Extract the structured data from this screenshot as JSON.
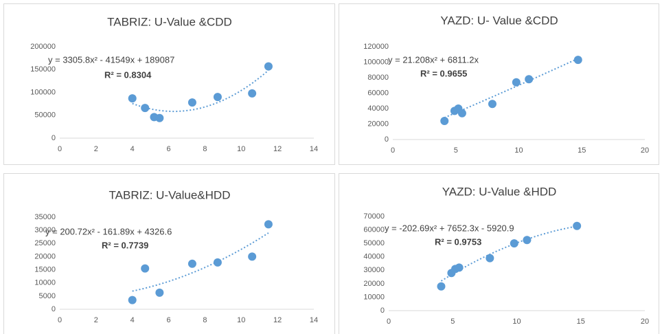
{
  "chart_data": [
    {
      "type": "scatter",
      "title": "TABRIZ: U-Value &CDD",
      "color": "#5b9bd5",
      "grid": false,
      "x": [
        4,
        4.7,
        5.2,
        5.5,
        7.3,
        8.7,
        10.6,
        11.5
      ],
      "values": [
        87000,
        66000,
        46000,
        44000,
        78000,
        90000,
        98000,
        157000
      ],
      "xlim": [
        0,
        14
      ],
      "xticks": [
        0,
        2,
        4,
        6,
        8,
        10,
        12,
        14
      ],
      "ylim": [
        0,
        200000
      ],
      "yticks": [
        0,
        50000,
        100000,
        150000,
        200000
      ],
      "trendline": {
        "equation": "y = 3305.8x² - 41549x + 189087",
        "r_squared": "R² = 0.8304",
        "a": 3305.8,
        "b": -41549,
        "c": 189087
      }
    },
    {
      "type": "scatter",
      "title": "YAZD: U- Value &CDD",
      "color": "#5b9bd5",
      "grid": false,
      "x": [
        4.1,
        4.9,
        5.2,
        5.5,
        7.9,
        9.8,
        10.8,
        14.7
      ],
      "values": [
        24000,
        37000,
        40000,
        34000,
        46000,
        74000,
        78000,
        103000
      ],
      "xlim": [
        0,
        20
      ],
      "xticks": [
        0,
        5,
        10,
        15,
        20
      ],
      "ylim": [
        0,
        120000
      ],
      "yticks": [
        0,
        20000,
        40000,
        60000,
        80000,
        100000,
        120000
      ],
      "trendline": {
        "equation": "y = 21.208x² + 6811.2x",
        "r_squared": "R² = 0.9655",
        "a": 21.208,
        "b": 6811.2
      }
    },
    {
      "type": "scatter",
      "title": "TABRIZ: U-Value&HDD",
      "color": "#5b9bd5",
      "grid": false,
      "x": [
        4,
        4.7,
        5.5,
        7.3,
        8.7,
        10.6,
        11.5
      ],
      "values": [
        3500,
        15500,
        6300,
        17300,
        17800,
        20000,
        32300
      ],
      "xlim": [
        0,
        14
      ],
      "xticks": [
        0,
        2,
        4,
        6,
        8,
        10,
        12,
        14
      ],
      "ylim": [
        0,
        35000
      ],
      "yticks": [
        0,
        5000,
        10000,
        15000,
        20000,
        25000,
        30000,
        35000
      ],
      "trendline": {
        "equation": "y = 200.72x² - 161.89x + 4326.6",
        "r_squared": "R² = 0.7739",
        "a": 200.72,
        "b": -161.89,
        "c": 4326.6
      }
    },
    {
      "type": "scatter",
      "title": "YAZD: U-Value &HDD",
      "color": "#5b9bd5",
      "grid": false,
      "x": [
        4.1,
        4.9,
        5.2,
        5.5,
        7.9,
        9.8,
        10.8,
        14.7
      ],
      "values": [
        18000,
        28000,
        31000,
        32000,
        39000,
        50000,
        52500,
        63000
      ],
      "xlim": [
        0,
        20
      ],
      "xticks": [
        0,
        5,
        10,
        15,
        20
      ],
      "ylim": [
        0,
        70000
      ],
      "yticks": [
        0,
        10000,
        20000,
        30000,
        40000,
        50000,
        60000,
        70000
      ],
      "trendline": {
        "equation": "y = -202.69x² + 7652.3x - 5920.9",
        "r_squared": "R² = 0.9753",
        "a": -202.69,
        "b": 7652.3,
        "c": -5920.9
      }
    }
  ]
}
